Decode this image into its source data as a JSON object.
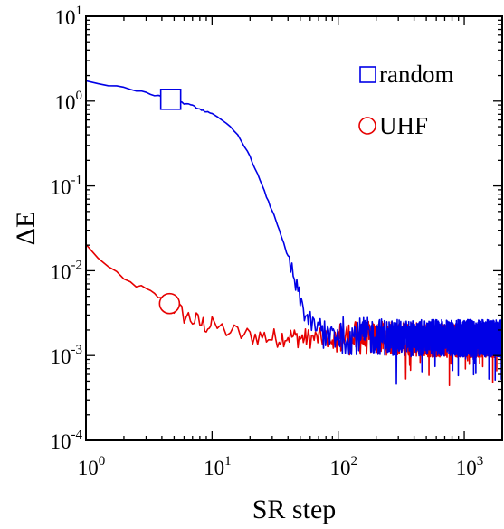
{
  "chart_data": {
    "type": "line",
    "xlabel": "SR step",
    "ylabel": "ΔE",
    "x_scale": "log",
    "y_scale": "log",
    "xlim": [
      1,
      2000
    ],
    "ylim": [
      0.0001,
      10
    ],
    "x_ticks": [
      {
        "value": 1,
        "base": "10",
        "exp": "0"
      },
      {
        "value": 10,
        "base": "10",
        "exp": "1"
      },
      {
        "value": 100,
        "base": "10",
        "exp": "2"
      },
      {
        "value": 1000,
        "base": "10",
        "exp": "3"
      }
    ],
    "y_ticks": [
      {
        "value": 10,
        "base": "10",
        "exp": "1"
      },
      {
        "value": 1,
        "base": "10",
        "exp": "0"
      },
      {
        "value": 0.1,
        "base": "10",
        "exp": "-1"
      },
      {
        "value": 0.01,
        "base": "10",
        "exp": "-2"
      },
      {
        "value": 0.001,
        "base": "10",
        "exp": "-3"
      },
      {
        "value": 0.0001,
        "base": "10",
        "exp": "-4"
      }
    ],
    "grid": false,
    "legend": "top-right",
    "series": [
      {
        "name": "random",
        "color": "#0000e6",
        "marker": "square",
        "marker_at": {
          "x": 4.7,
          "y": 1.05
        },
        "x": [
          1,
          2,
          3,
          4.7,
          7,
          10,
          13,
          16,
          19,
          22,
          25,
          28,
          32,
          36,
          40,
          45,
          50,
          55,
          60,
          65,
          70,
          80,
          90,
          100,
          120,
          150,
          200,
          300,
          500,
          800,
          1200,
          2000
        ],
        "y": [
          1.7,
          1.45,
          1.25,
          1.05,
          0.88,
          0.7,
          0.55,
          0.4,
          0.26,
          0.16,
          0.1,
          0.065,
          0.04,
          0.024,
          0.014,
          0.0075,
          0.0045,
          0.003,
          0.0025,
          0.0022,
          0.002,
          0.0019,
          0.0018,
          0.0018,
          0.0017,
          0.0017,
          0.0017,
          0.0016,
          0.0016,
          0.0016,
          0.0016,
          0.0016
        ]
      },
      {
        "name": "UHF",
        "color": "#e60000",
        "marker": "circle",
        "marker_at": {
          "x": 4.6,
          "y": 0.0041
        },
        "x": [
          1,
          1.5,
          2,
          3,
          4.6,
          6,
          8,
          10,
          13,
          16,
          20,
          25,
          30,
          40,
          50,
          60,
          80,
          100,
          150,
          200,
          300,
          500,
          800,
          1200,
          2000
        ],
        "y": [
          0.02,
          0.011,
          0.0078,
          0.006,
          0.0041,
          0.003,
          0.0024,
          0.0022,
          0.002,
          0.0018,
          0.0017,
          0.0017,
          0.0016,
          0.0017,
          0.0016,
          0.0016,
          0.0016,
          0.0016,
          0.0016,
          0.0016,
          0.0016,
          0.0015,
          0.0015,
          0.0015,
          0.0015
        ]
      }
    ]
  }
}
